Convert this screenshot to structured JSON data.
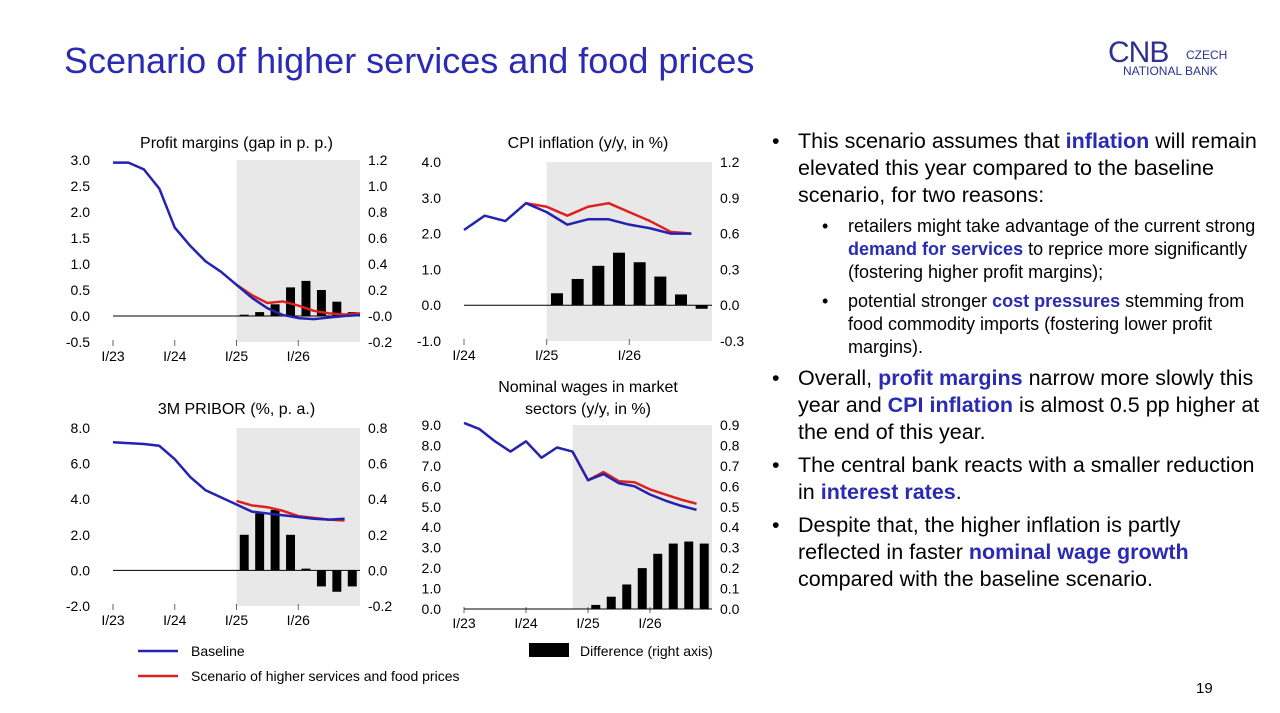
{
  "title": "Scenario of higher services and food prices",
  "logo": {
    "mark": "CNB",
    "line1": "CZECH",
    "line2": "NATIONAL BANK"
  },
  "colors": {
    "baseline": "#2323b0",
    "scenario": "#e02020",
    "bars": "#000000",
    "shade": "#e8e8e8",
    "accent": "#2a2ab3"
  },
  "legend": {
    "baseline": "Baseline",
    "scenario": "Scenario of higher services and food prices",
    "difference": "Difference (right axis)"
  },
  "bullets": [
    {
      "parts": [
        {
          "t": "This scenario assumes that "
        },
        {
          "t": "inflation",
          "hl": true
        },
        {
          "t": " will remain elevated this year compared to the baseline scenario, for two reasons:"
        }
      ]
    },
    {
      "sub": true,
      "parts": [
        {
          "t": "retailers might take advantage of the current strong "
        },
        {
          "t": "demand for services",
          "hl": true
        },
        {
          "t": " to reprice more significantly (fostering higher profit margins);"
        }
      ]
    },
    {
      "sub": true,
      "parts": [
        {
          "t": "potential stronger "
        },
        {
          "t": "cost pressures",
          "hl": true
        },
        {
          "t": " stemming from food commodity imports (fostering lower profit margins)."
        }
      ]
    },
    {
      "parts": [
        {
          "t": "Overall, "
        },
        {
          "t": "profit margins",
          "hl": true
        },
        {
          "t": " narrow more slowly this year and "
        },
        {
          "t": "CPI inflation",
          "hl": true
        },
        {
          "t": " is almost 0.5 pp higher at the end of this year."
        }
      ]
    },
    {
      "parts": [
        {
          "t": "The central bank reacts with a smaller reduction in "
        },
        {
          "t": "interest rates",
          "hl": true
        },
        {
          "t": "."
        }
      ]
    },
    {
      "parts": [
        {
          "t": "Despite that, the higher inflation is partly reflected in faster "
        },
        {
          "t": "nominal wage growth",
          "hl": true
        },
        {
          "t": " compared with the baseline scenario."
        }
      ]
    }
  ],
  "page_number": "19",
  "chart_data": [
    {
      "type": "line",
      "title": [
        "Profit margins (gap in p. p.)"
      ],
      "x_range": [
        0,
        16
      ],
      "shade_range": [
        8,
        16
      ],
      "x_ticks": [
        {
          "x": 0,
          "label": "I/23"
        },
        {
          "x": 4,
          "label": "I/24"
        },
        {
          "x": 8,
          "label": "I/25"
        },
        {
          "x": 12,
          "label": "I/26"
        }
      ],
      "ylim_left": [
        -0.5,
        3.0
      ],
      "yticks_left": [
        {
          "v": 3.0,
          "label": "3.0"
        },
        {
          "v": 2.5,
          "label": "2.5"
        },
        {
          "v": 2.0,
          "label": "2.0"
        },
        {
          "v": 1.5,
          "label": "1.5"
        },
        {
          "v": 1.0,
          "label": "1.0"
        },
        {
          "v": 0.5,
          "label": "0.5"
        },
        {
          "v": 0.0,
          "label": "0.0"
        },
        {
          "v": -0.5,
          "label": "-0.5"
        }
      ],
      "ylim_right": [
        -0.2,
        1.2
      ],
      "yticks_right": [
        {
          "v": 1.2,
          "label": "1.2"
        },
        {
          "v": 1.0,
          "label": "1.0"
        },
        {
          "v": 0.8,
          "label": "0.8"
        },
        {
          "v": 0.6,
          "label": "0.6"
        },
        {
          "v": 0.4,
          "label": "0.4"
        },
        {
          "v": 0.2,
          "label": "0.2"
        },
        {
          "v": 0.0,
          "label": "-0.0"
        },
        {
          "v": -0.2,
          "label": "-0.2"
        }
      ],
      "baseline": {
        "x0": 0,
        "values": [
          2.95,
          2.95,
          2.82,
          2.45,
          1.7,
          1.35,
          1.05,
          0.85,
          0.6,
          0.35,
          0.15,
          0.02,
          -0.04,
          -0.06,
          -0.03,
          0.0,
          0.02
        ]
      },
      "scenario": {
        "x0": 8,
        "values": [
          0.6,
          0.4,
          0.25,
          0.28,
          0.2,
          0.1,
          0.05,
          0.03,
          0.05
        ]
      },
      "difference": {
        "x0": 8,
        "values": [
          0.01,
          0.03,
          0.09,
          0.22,
          0.27,
          0.2,
          0.11,
          0.03
        ]
      }
    },
    {
      "type": "line",
      "title": [
        "CPI inflation (y/y, in %)"
      ],
      "x_range": [
        0,
        12
      ],
      "shade_range": [
        4,
        12
      ],
      "x_ticks": [
        {
          "x": 0,
          "label": "I/24"
        },
        {
          "x": 4,
          "label": "I/25"
        },
        {
          "x": 8,
          "label": "I/26"
        }
      ],
      "ylim_left": [
        -1.0,
        4.0
      ],
      "yticks_left": [
        {
          "v": 4.0,
          "label": "4.0"
        },
        {
          "v": 3.0,
          "label": "3.0"
        },
        {
          "v": 2.0,
          "label": "2.0"
        },
        {
          "v": 1.0,
          "label": "1.0"
        },
        {
          "v": 0.0,
          "label": "0.0"
        },
        {
          "v": -1.0,
          "label": "-1.0"
        }
      ],
      "ylim_right": [
        -0.3,
        1.2
      ],
      "yticks_right": [
        {
          "v": 1.2,
          "label": "1.2"
        },
        {
          "v": 0.9,
          "label": "0.9"
        },
        {
          "v": 0.6,
          "label": "0.6"
        },
        {
          "v": 0.3,
          "label": "0.3"
        },
        {
          "v": 0.0,
          "label": "0.0"
        },
        {
          "v": -0.3,
          "label": "-0.3"
        }
      ],
      "baseline": {
        "x0": 0,
        "values": [
          2.1,
          2.5,
          2.35,
          2.85,
          2.6,
          2.25,
          2.4,
          2.4,
          2.25,
          2.15,
          2.0,
          2.0
        ]
      },
      "scenario": {
        "x0": 3,
        "values": [
          2.85,
          2.75,
          2.5,
          2.75,
          2.85,
          2.6,
          2.35,
          2.05,
          2.0
        ]
      },
      "difference": {
        "x0": 4,
        "values": [
          0.1,
          0.22,
          0.33,
          0.44,
          0.36,
          0.24,
          0.09,
          -0.03
        ]
      }
    },
    {
      "type": "line",
      "title": [
        "3M PRIBOR (%, p. a.)"
      ],
      "x_range": [
        0,
        16
      ],
      "shade_range": [
        8,
        16
      ],
      "x_ticks": [
        {
          "x": 0,
          "label": "I/23"
        },
        {
          "x": 4,
          "label": "I/24"
        },
        {
          "x": 8,
          "label": "I/25"
        },
        {
          "x": 12,
          "label": "I/26"
        }
      ],
      "ylim_left": [
        -2.0,
        8.0
      ],
      "yticks_left": [
        {
          "v": 8.0,
          "label": "8.0"
        },
        {
          "v": 6.0,
          "label": "6.0"
        },
        {
          "v": 4.0,
          "label": "4.0"
        },
        {
          "v": 2.0,
          "label": "2.0"
        },
        {
          "v": 0.0,
          "label": "0.0"
        },
        {
          "v": -2.0,
          "label": "-2.0"
        }
      ],
      "ylim_right": [
        -0.2,
        0.8
      ],
      "yticks_right": [
        {
          "v": 0.8,
          "label": "0.8"
        },
        {
          "v": 0.6,
          "label": "0.6"
        },
        {
          "v": 0.4,
          "label": "0.4"
        },
        {
          "v": 0.2,
          "label": "0.2"
        },
        {
          "v": 0.0,
          "label": "0.0"
        },
        {
          "v": -0.2,
          "label": "-0.2"
        }
      ],
      "baseline": {
        "x0": 0,
        "values": [
          7.2,
          7.15,
          7.1,
          7.0,
          6.25,
          5.25,
          4.5,
          4.1,
          3.7,
          3.3,
          3.2,
          3.1,
          3.0,
          2.9,
          2.85,
          2.9
        ]
      },
      "scenario": {
        "x0": 8,
        "values": [
          3.9,
          3.65,
          3.55,
          3.35,
          3.05,
          2.95,
          2.85,
          2.8
        ]
      },
      "difference": {
        "x0": 8,
        "values": [
          0.2,
          0.32,
          0.34,
          0.2,
          0.01,
          -0.09,
          -0.12,
          -0.09
        ]
      }
    },
    {
      "type": "line",
      "title": [
        "Nominal wages in market",
        "sectors (y/y, in %)"
      ],
      "x_range": [
        0,
        16
      ],
      "shade_range": [
        7,
        16
      ],
      "x_ticks": [
        {
          "x": 0,
          "label": "I/23"
        },
        {
          "x": 4,
          "label": "I/24"
        },
        {
          "x": 8,
          "label": "I/25"
        },
        {
          "x": 12,
          "label": "I/26"
        }
      ],
      "ylim_left": [
        0.0,
        9.0
      ],
      "yticks_left": [
        {
          "v": 9.0,
          "label": "9.0"
        },
        {
          "v": 8.0,
          "label": "8.0"
        },
        {
          "v": 7.0,
          "label": "7.0"
        },
        {
          "v": 6.0,
          "label": "6.0"
        },
        {
          "v": 5.0,
          "label": "5.0"
        },
        {
          "v": 4.0,
          "label": "4.0"
        },
        {
          "v": 3.0,
          "label": "3.0"
        },
        {
          "v": 2.0,
          "label": "2.0"
        },
        {
          "v": 1.0,
          "label": "1.0"
        },
        {
          "v": 0.0,
          "label": "0.0"
        }
      ],
      "ylim_right": [
        0.0,
        0.9
      ],
      "yticks_right": [
        {
          "v": 0.9,
          "label": "0.9"
        },
        {
          "v": 0.8,
          "label": "0.8"
        },
        {
          "v": 0.7,
          "label": "0.7"
        },
        {
          "v": 0.6,
          "label": "0.6"
        },
        {
          "v": 0.5,
          "label": "0.5"
        },
        {
          "v": 0.4,
          "label": "0.4"
        },
        {
          "v": 0.3,
          "label": "0.3"
        },
        {
          "v": 0.2,
          "label": "0.2"
        },
        {
          "v": 0.1,
          "label": "0.1"
        },
        {
          "v": 0.0,
          "label": "0.0"
        }
      ],
      "baseline": {
        "x0": 0,
        "values": [
          9.1,
          8.8,
          8.2,
          7.7,
          8.2,
          7.4,
          7.9,
          7.7,
          6.3,
          6.6,
          6.15,
          6.0,
          5.6,
          5.3,
          5.05,
          4.85
        ]
      },
      "scenario": {
        "x0": 7,
        "values": [
          7.7,
          6.3,
          6.7,
          6.25,
          6.2,
          5.85,
          5.6,
          5.35,
          5.15
        ]
      },
      "difference": {
        "x0": 8,
        "values": [
          0.02,
          0.06,
          0.12,
          0.2,
          0.27,
          0.32,
          0.33,
          0.32
        ]
      }
    }
  ]
}
